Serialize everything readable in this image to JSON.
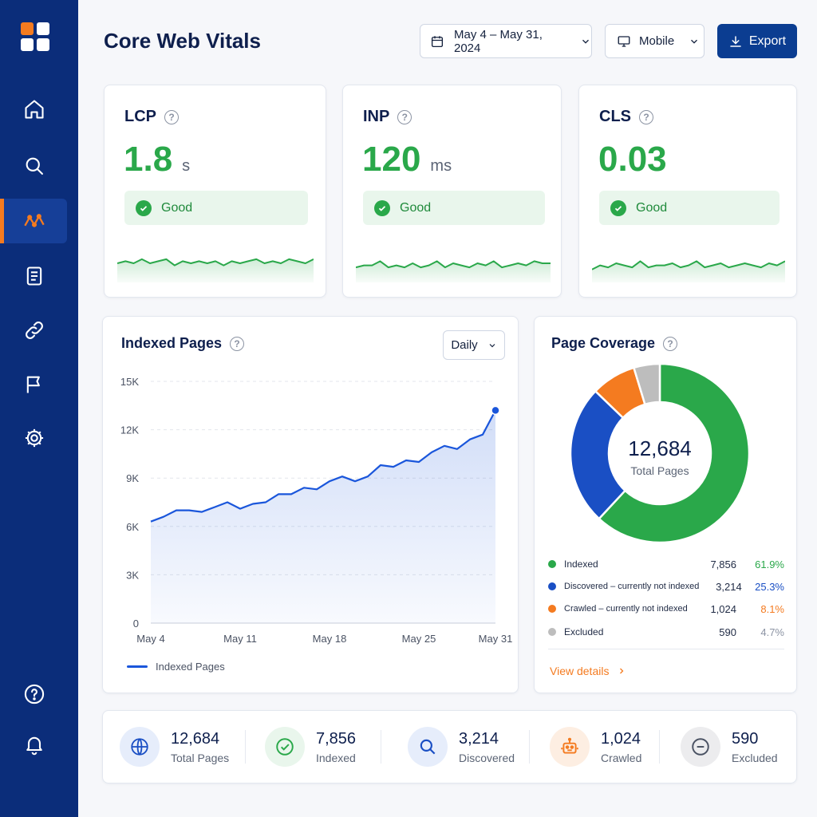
{
  "header": {
    "title": "Core Web Vitals",
    "date_range": "May 4 – May 31, 2024",
    "device": "Mobile",
    "export_label": "Export"
  },
  "sidebar": {
    "items": [
      "home-icon",
      "search-icon",
      "activity-icon",
      "document-icon",
      "link-icon",
      "flag-icon",
      "gear-icon"
    ],
    "bottom": [
      "help-icon",
      "bell-icon"
    ],
    "active": "activity-icon"
  },
  "metrics": [
    {
      "label": "LCP",
      "value": "1.8",
      "unit": "s",
      "status": "Good",
      "trend": [
        7,
        8,
        7,
        9,
        7,
        8,
        9,
        6,
        8,
        7,
        8,
        7,
        8,
        6,
        8,
        7,
        8,
        9,
        7,
        8,
        7,
        9,
        8,
        7,
        9
      ]
    },
    {
      "label": "INP",
      "value": "120",
      "unit": "ms",
      "status": "Good",
      "trend": [
        5,
        6,
        6,
        8,
        5,
        6,
        5,
        7,
        5,
        6,
        8,
        5,
        7,
        6,
        5,
        7,
        6,
        8,
        5,
        6,
        7,
        6,
        8,
        7,
        7
      ]
    },
    {
      "label": "CLS",
      "value": "0.03",
      "unit": "",
      "status": "Good",
      "trend": [
        4,
        6,
        5,
        7,
        6,
        5,
        8,
        5,
        6,
        6,
        7,
        5,
        6,
        8,
        5,
        6,
        7,
        5,
        6,
        7,
        6,
        5,
        7,
        6,
        8
      ]
    }
  ],
  "colors": {
    "good": "#2aa84a",
    "accent": "#f47b20",
    "primary": "#0b3d91",
    "line": "#1a56db"
  },
  "indexed": {
    "title": "Indexed Pages",
    "granularity": "Daily",
    "legend": "Indexed Pages"
  },
  "chart_data": {
    "type": "area",
    "x": [
      "May 4",
      "May 5",
      "May 6",
      "May 7",
      "May 8",
      "May 9",
      "May 10",
      "May 11",
      "May 12",
      "May 13",
      "May 14",
      "May 15",
      "May 16",
      "May 17",
      "May 18",
      "May 19",
      "May 20",
      "May 21",
      "May 22",
      "May 23",
      "May 24",
      "May 25",
      "May 26",
      "May 27",
      "May 28",
      "May 29",
      "May 30",
      "May 31"
    ],
    "series": [
      {
        "name": "Indexed Pages",
        "values": [
          6300,
          6600,
          7000,
          7000,
          6900,
          7200,
          7500,
          7100,
          7400,
          7500,
          8000,
          8000,
          8400,
          8300,
          8800,
          9100,
          8800,
          9100,
          9800,
          9700,
          10100,
          10000,
          10600,
          11000,
          10800,
          11400,
          11700,
          13200
        ]
      }
    ],
    "xticks": [
      "May 4",
      "May 11",
      "May 18",
      "May 25",
      "May 31"
    ],
    "yticks": [
      "0",
      "3K",
      "6K",
      "9K",
      "12K",
      "15K"
    ],
    "ylim": [
      0,
      15000
    ],
    "grid": true,
    "title": "Indexed Pages",
    "xlabel": "",
    "ylabel": ""
  },
  "coverage": {
    "title": "Page Coverage",
    "total": "12,684",
    "total_label": "Total Pages",
    "rows": [
      {
        "label": "Indexed",
        "count": "7,856",
        "pct": "61.9%",
        "value": 61.9,
        "color": "#2aa84a"
      },
      {
        "label": "Discovered – currently not indexed",
        "count": "3,214",
        "pct": "25.3%",
        "value": 25.3,
        "color": "#1a4fc4"
      },
      {
        "label": "Crawled – currently not indexed",
        "count": "1,024",
        "pct": "8.1%",
        "value": 8.1,
        "color": "#f47b20"
      },
      {
        "label": "Excluded",
        "count": "590",
        "pct": "4.7%",
        "value": 4.7,
        "color": "#bdbdbd"
      }
    ],
    "link": "View details"
  },
  "stats": [
    {
      "value": "12,684",
      "label": "Total Pages",
      "icon": "globe-icon"
    },
    {
      "value": "7,856",
      "label": "Indexed",
      "icon": "check-circle-icon"
    },
    {
      "value": "3,214",
      "label": "Discovered",
      "icon": "search-icon"
    },
    {
      "value": "1,024",
      "label": "Crawled",
      "icon": "robot-icon"
    },
    {
      "value": "590",
      "label": "Excluded",
      "icon": "minus-circle-icon"
    }
  ]
}
